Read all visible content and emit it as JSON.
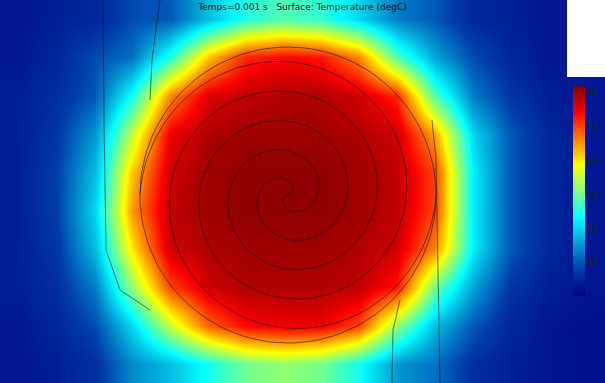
{
  "chart_data": {
    "type": "heatmap",
    "title": "Temps=0.001 s   Surface: Temperature (degC)",
    "tick_labels": false,
    "cells": [
      [
        23,
        24,
        25,
        29,
        30,
        38,
        45,
        48,
        46,
        40,
        33,
        30,
        25,
        24,
        23,
        null
      ],
      [
        23,
        25,
        29,
        32,
        45,
        62,
        72,
        74,
        73,
        66,
        48,
        36,
        29,
        25,
        23,
        null
      ],
      [
        24,
        26,
        30,
        44,
        66,
        76,
        78,
        79,
        79,
        77,
        72,
        48,
        33,
        27,
        24,
        23
      ],
      [
        24,
        27,
        35,
        55,
        75,
        79,
        80,
        80,
        80,
        79,
        77,
        64,
        40,
        30,
        25,
        23
      ],
      [
        24,
        28,
        38,
        62,
        77,
        80,
        81,
        81,
        81,
        80,
        78,
        70,
        42,
        30,
        25,
        23
      ],
      [
        24,
        28,
        40,
        65,
        78,
        80,
        81,
        81,
        81,
        80,
        78,
        70,
        42,
        30,
        25,
        23
      ],
      [
        24,
        27,
        38,
        60,
        77,
        79,
        80,
        80,
        80,
        79,
        77,
        66,
        42,
        30,
        25,
        23
      ],
      [
        24,
        26,
        33,
        52,
        70,
        77,
        79,
        79,
        79,
        78,
        73,
        50,
        36,
        27,
        24,
        23
      ],
      [
        23,
        25,
        29,
        40,
        55,
        68,
        74,
        75,
        75,
        70,
        52,
        38,
        30,
        25,
        23,
        22
      ],
      [
        23,
        24,
        26,
        34,
        38,
        44,
        50,
        52,
        50,
        44,
        35,
        32,
        26,
        24,
        23,
        22
      ]
    ],
    "colorbar_range": [
      20,
      82
    ],
    "colorbar_ticks": [
      30,
      40,
      50,
      60,
      70,
      80
    ]
  }
}
